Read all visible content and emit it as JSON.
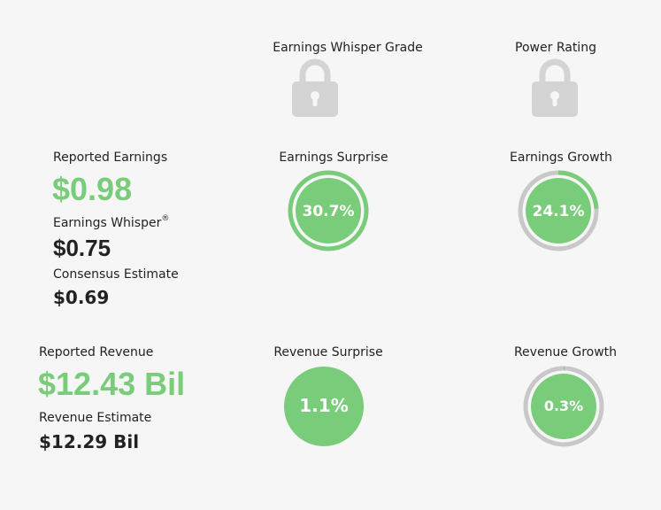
{
  "grades": {
    "whisper_grade_label": "Earnings Whisper Grade",
    "power_rating_label": "Power Rating",
    "lock_icon": "lock-icon"
  },
  "earnings": {
    "reported_label": "Reported Earnings",
    "reported_value": "$0.98",
    "whisper_label": "Earnings Whisper",
    "whisper_mark": "®",
    "whisper_value": "$0.75",
    "consensus_label": "Consensus Estimate",
    "consensus_value": "$0.69",
    "surprise_label": "Earnings Surprise",
    "surprise_value": "30.7%",
    "surprise_pct": 30.7,
    "growth_label": "Earnings Growth",
    "growth_value": "24.1%",
    "growth_pct": 24.1
  },
  "revenue": {
    "reported_label": "Reported Revenue",
    "reported_value": "$12.43 Bil",
    "estimate_label": "Revenue Estimate",
    "estimate_value": "$12.29 Bil",
    "surprise_label": "Revenue Surprise",
    "surprise_value": "1.1%",
    "surprise_pct": 1.1,
    "growth_label": "Revenue Growth",
    "growth_value": "0.3%",
    "growth_pct": 0.3
  },
  "colors": {
    "green": "#79cc79",
    "track": "#c8c8c8",
    "lock": "#d4d4d4",
    "background": "#f6f6f6"
  }
}
